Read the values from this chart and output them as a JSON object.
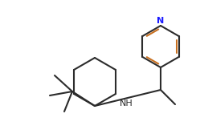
{
  "bg_color": "#ffffff",
  "line_color": "#2c2c2c",
  "line_width": 1.5,
  "bond_color_double": "#c87020",
  "text_color": "#2c2c2c",
  "N_color": "#1a1aff",
  "font_size": 8
}
